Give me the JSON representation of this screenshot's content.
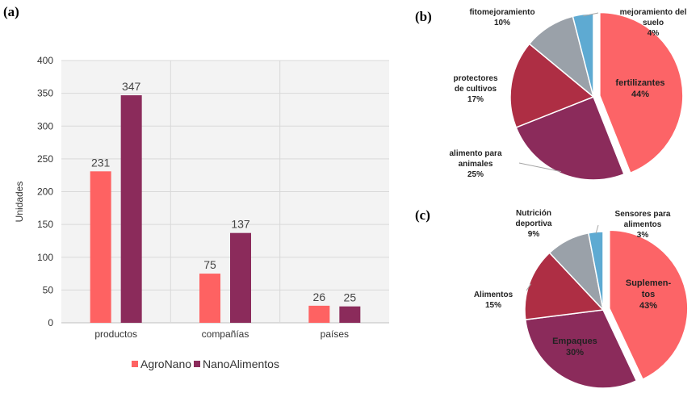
{
  "chart_data": [
    {
      "panel": "(a)",
      "type": "bar",
      "categories": [
        "productos",
        "compañías",
        "países"
      ],
      "series": [
        {
          "name": "AgroNano",
          "color": "#fe6262",
          "values": [
            231,
            75,
            26
          ]
        },
        {
          "name": "NanoAlimentos",
          "color": "#8b2b5b",
          "values": [
            347,
            137,
            25
          ]
        }
      ],
      "ylabel": "Unidades",
      "ylim": [
        0,
        400
      ],
      "yticks": [
        "0",
        "50",
        "100",
        "150",
        "200",
        "250",
        "300",
        "350",
        "400"
      ],
      "grid": true,
      "legend": "bottom"
    },
    {
      "panel": "(b)",
      "type": "pie",
      "slices": [
        {
          "lines": [
            "fertilizantes"
          ],
          "pct": "44%",
          "value": 44,
          "color": "#fc6467"
        },
        {
          "lines": [
            "alimento para",
            "animales"
          ],
          "pct": "25%",
          "value": 25,
          "color": "#8b2b5b"
        },
        {
          "lines": [
            "protectores",
            "de cultivos"
          ],
          "pct": "17%",
          "value": 17,
          "color": "#ae2e44"
        },
        {
          "lines": [
            "fitomejoramiento"
          ],
          "pct": "10%",
          "value": 10,
          "color": "#9aa1a9"
        },
        {
          "lines": [
            "mejoramiento del",
            "suelo"
          ],
          "pct": "4%",
          "value": 4,
          "color": "#5eaad2"
        }
      ]
    },
    {
      "panel": "(c)",
      "type": "pie",
      "slices": [
        {
          "lines": [
            "Suplemen-",
            "tos"
          ],
          "pct": "43%",
          "value": 43,
          "color": "#fc6467"
        },
        {
          "lines": [
            "Empaques"
          ],
          "pct": "30%",
          "value": 30,
          "color": "#8b2b5b"
        },
        {
          "lines": [
            "Alimentos"
          ],
          "pct": "15%",
          "value": 15,
          "color": "#ae2e44"
        },
        {
          "lines": [
            "Nutrición",
            "deportiva"
          ],
          "pct": "9%",
          "value": 9,
          "color": "#9aa1a9"
        },
        {
          "lines": [
            "Sensores para",
            "alimentos"
          ],
          "pct": "3%",
          "value": 3,
          "color": "#5eaad2"
        }
      ]
    }
  ]
}
